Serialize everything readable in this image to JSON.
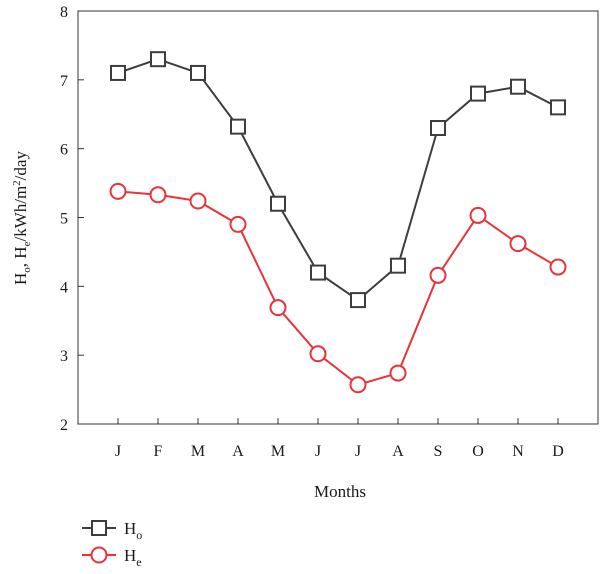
{
  "chart_data": {
    "type": "line",
    "categories": [
      "J",
      "F",
      "M",
      "A",
      "M",
      "J",
      "J",
      "A",
      "S",
      "O",
      "N",
      "D"
    ],
    "series": [
      {
        "name": "Ho",
        "name_main": "H",
        "name_sub": "o",
        "marker": "square",
        "color": "#3d3d3d",
        "values": [
          7.1,
          7.3,
          7.1,
          6.32,
          5.2,
          4.2,
          3.8,
          4.3,
          6.3,
          6.8,
          6.9,
          6.6
        ]
      },
      {
        "name": "He",
        "name_main": "H",
        "name_sub": "e",
        "marker": "circle",
        "color": "#e8333a",
        "values": [
          5.38,
          5.33,
          5.24,
          4.9,
          3.69,
          3.02,
          2.57,
          2.74,
          4.16,
          5.03,
          4.62,
          4.28
        ]
      }
    ],
    "title": "",
    "xlabel": "Months",
    "ylabel": "Ho, He/kWh/m2/day",
    "ylim": [
      2,
      8
    ],
    "yticks": [
      2,
      3,
      4,
      5,
      6,
      7,
      8
    ],
    "grid": false,
    "legend": "bottom-left"
  }
}
